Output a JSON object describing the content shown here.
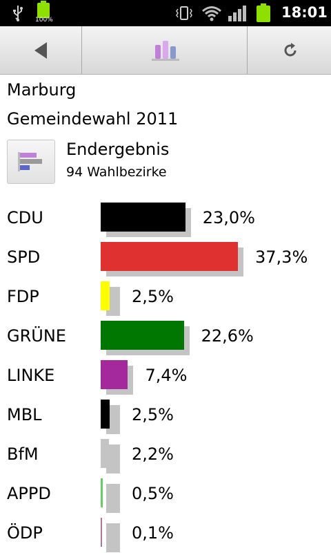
{
  "status_bar": {
    "battery_percent": "100%",
    "time": "18:01",
    "icons": [
      "usb-icon",
      "battery-icon",
      "vibrate-icon",
      "wifi-icon",
      "signal-icon",
      "battery-icon"
    ]
  },
  "toolbar": {
    "back_icon": "back-arrow-icon",
    "chart_icon": "bar-chart-icon",
    "refresh_icon": "refresh-icon"
  },
  "header": {
    "city": "Marburg",
    "election": "Gemeindewahl 2011"
  },
  "result": {
    "icon": "bar-chart-horizontal-icon",
    "title": "Endergebnis",
    "subtitle": "94 Wahlbezirke"
  },
  "chart_data": {
    "type": "bar",
    "orientation": "horizontal",
    "categories": [
      "CDU",
      "SPD",
      "FDP",
      "GRÜNE",
      "LINKE",
      "MBL",
      "BfM",
      "APPD",
      "ÖDP"
    ],
    "values": [
      23.0,
      37.3,
      2.5,
      22.6,
      7.4,
      2.5,
      2.2,
      0.5,
      0.1
    ],
    "labels": [
      "23,0%",
      "37,3%",
      "2,5%",
      "22,6%",
      "7,4%",
      "2,5%",
      "2,2%",
      "0,5%",
      "0,1%"
    ],
    "colors": [
      "#000000",
      "#e03131",
      "#ffff00",
      "#007700",
      "#a4299c",
      "#000000",
      "#c4c4c4",
      "#66cc66",
      "#a878a0"
    ],
    "xlabel": "",
    "ylabel": ""
  }
}
